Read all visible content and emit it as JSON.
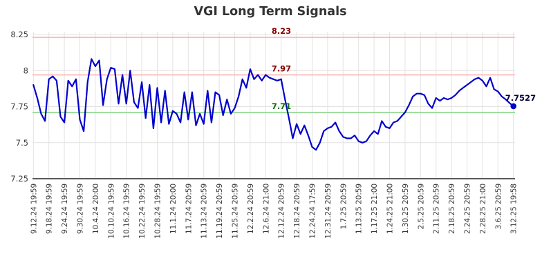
{
  "title": "VGI Long Term Signals",
  "chart_data": {
    "type": "line",
    "title": "VGI Long Term Signals",
    "xlabel": "",
    "ylabel": "",
    "grid": true,
    "legend": false,
    "ylim": [
      7.25,
      8.27
    ],
    "colors": {
      "series": "#0101cd",
      "grid": "#e2e2e2",
      "axis": "#222222",
      "tick_text": "#3a3a3a",
      "background": "#ffffff"
    },
    "y_ticks": [
      {
        "value": 8.25,
        "label": "8.25"
      },
      {
        "value": 8.0,
        "label": "8"
      },
      {
        "value": 7.75,
        "label": "7.75"
      },
      {
        "value": 7.5,
        "label": "7.5"
      },
      {
        "value": 7.25,
        "label": "7.25"
      }
    ],
    "tick_every": 4,
    "x_tick_labels": [
      "9.12.24 19:59",
      "9.18.24 19:59",
      "9.24.24 19:59",
      "9.30.24 19:59",
      "10.4.24 20:00",
      "10.10.24 19:59",
      "10.16.24 19:59",
      "10.22.24 19:59",
      "10.28.24 19:59",
      "11.1.24 20:00",
      "11.7.24 20:59",
      "11.13.24 20:59",
      "11.19.24 20:59",
      "11.25.24 20:59",
      "12.2.24 20:59",
      "12.6.24 21:00",
      "12.12.24 20:59",
      "12.18.24 20:59",
      "12.24.24 17:59",
      "12.31.24 20:59",
      "1.7.25 20:59",
      "1.13.25 20:59",
      "1.17.25 21:00",
      "1.24.25 21:00",
      "1.30.25 20:59",
      "2.5.25 20:59",
      "2.11.25 20:59",
      "2.18.25 20:59",
      "2.24.25 20:59",
      "2.28.25 21:00",
      "3.6.25 20:59",
      "3.12.25 19:58"
    ],
    "values": [
      7.9,
      7.81,
      7.7,
      7.65,
      7.94,
      7.96,
      7.93,
      7.68,
      7.64,
      7.93,
      7.89,
      7.94,
      7.66,
      7.58,
      7.92,
      8.08,
      8.03,
      8.07,
      7.76,
      7.94,
      8.02,
      8.01,
      7.77,
      7.97,
      7.77,
      8.0,
      7.78,
      7.74,
      7.92,
      7.67,
      7.9,
      7.6,
      7.88,
      7.64,
      7.86,
      7.63,
      7.72,
      7.7,
      7.64,
      7.85,
      7.66,
      7.85,
      7.62,
      7.7,
      7.63,
      7.86,
      7.64,
      7.85,
      7.83,
      7.69,
      7.8,
      7.7,
      7.74,
      7.82,
      7.94,
      7.88,
      8.01,
      7.94,
      7.97,
      7.93,
      7.97,
      7.95,
      7.94,
      7.93,
      7.94,
      7.8,
      7.67,
      7.53,
      7.63,
      7.56,
      7.62,
      7.55,
      7.47,
      7.45,
      7.5,
      7.58,
      7.6,
      7.61,
      7.64,
      7.58,
      7.54,
      7.53,
      7.53,
      7.55,
      7.51,
      7.5,
      7.51,
      7.55,
      7.58,
      7.56,
      7.65,
      7.61,
      7.6,
      7.64,
      7.65,
      7.68,
      7.71,
      7.76,
      7.82,
      7.84,
      7.84,
      7.83,
      7.77,
      7.74,
      7.81,
      7.79,
      7.81,
      7.8,
      7.81,
      7.83,
      7.86,
      7.88,
      7.9,
      7.92,
      7.94,
      7.95,
      7.93,
      7.89,
      7.95,
      7.87,
      7.855,
      7.82,
      7.8,
      7.775,
      7.7527
    ],
    "reference_lines": [
      {
        "value": 8.23,
        "label": "8.23",
        "color": "#ffb9b9",
        "label_color": "#8b0000"
      },
      {
        "value": 7.97,
        "label": "7.97",
        "color": "#ffb9b9",
        "label_color": "#8b0000"
      },
      {
        "value": 7.71,
        "label": "7.71",
        "color": "#90d890",
        "label_color": "#0e6b0e"
      }
    ],
    "last_point": {
      "value": 7.7527,
      "label": "7.7527",
      "label_color": "#00003c"
    }
  }
}
